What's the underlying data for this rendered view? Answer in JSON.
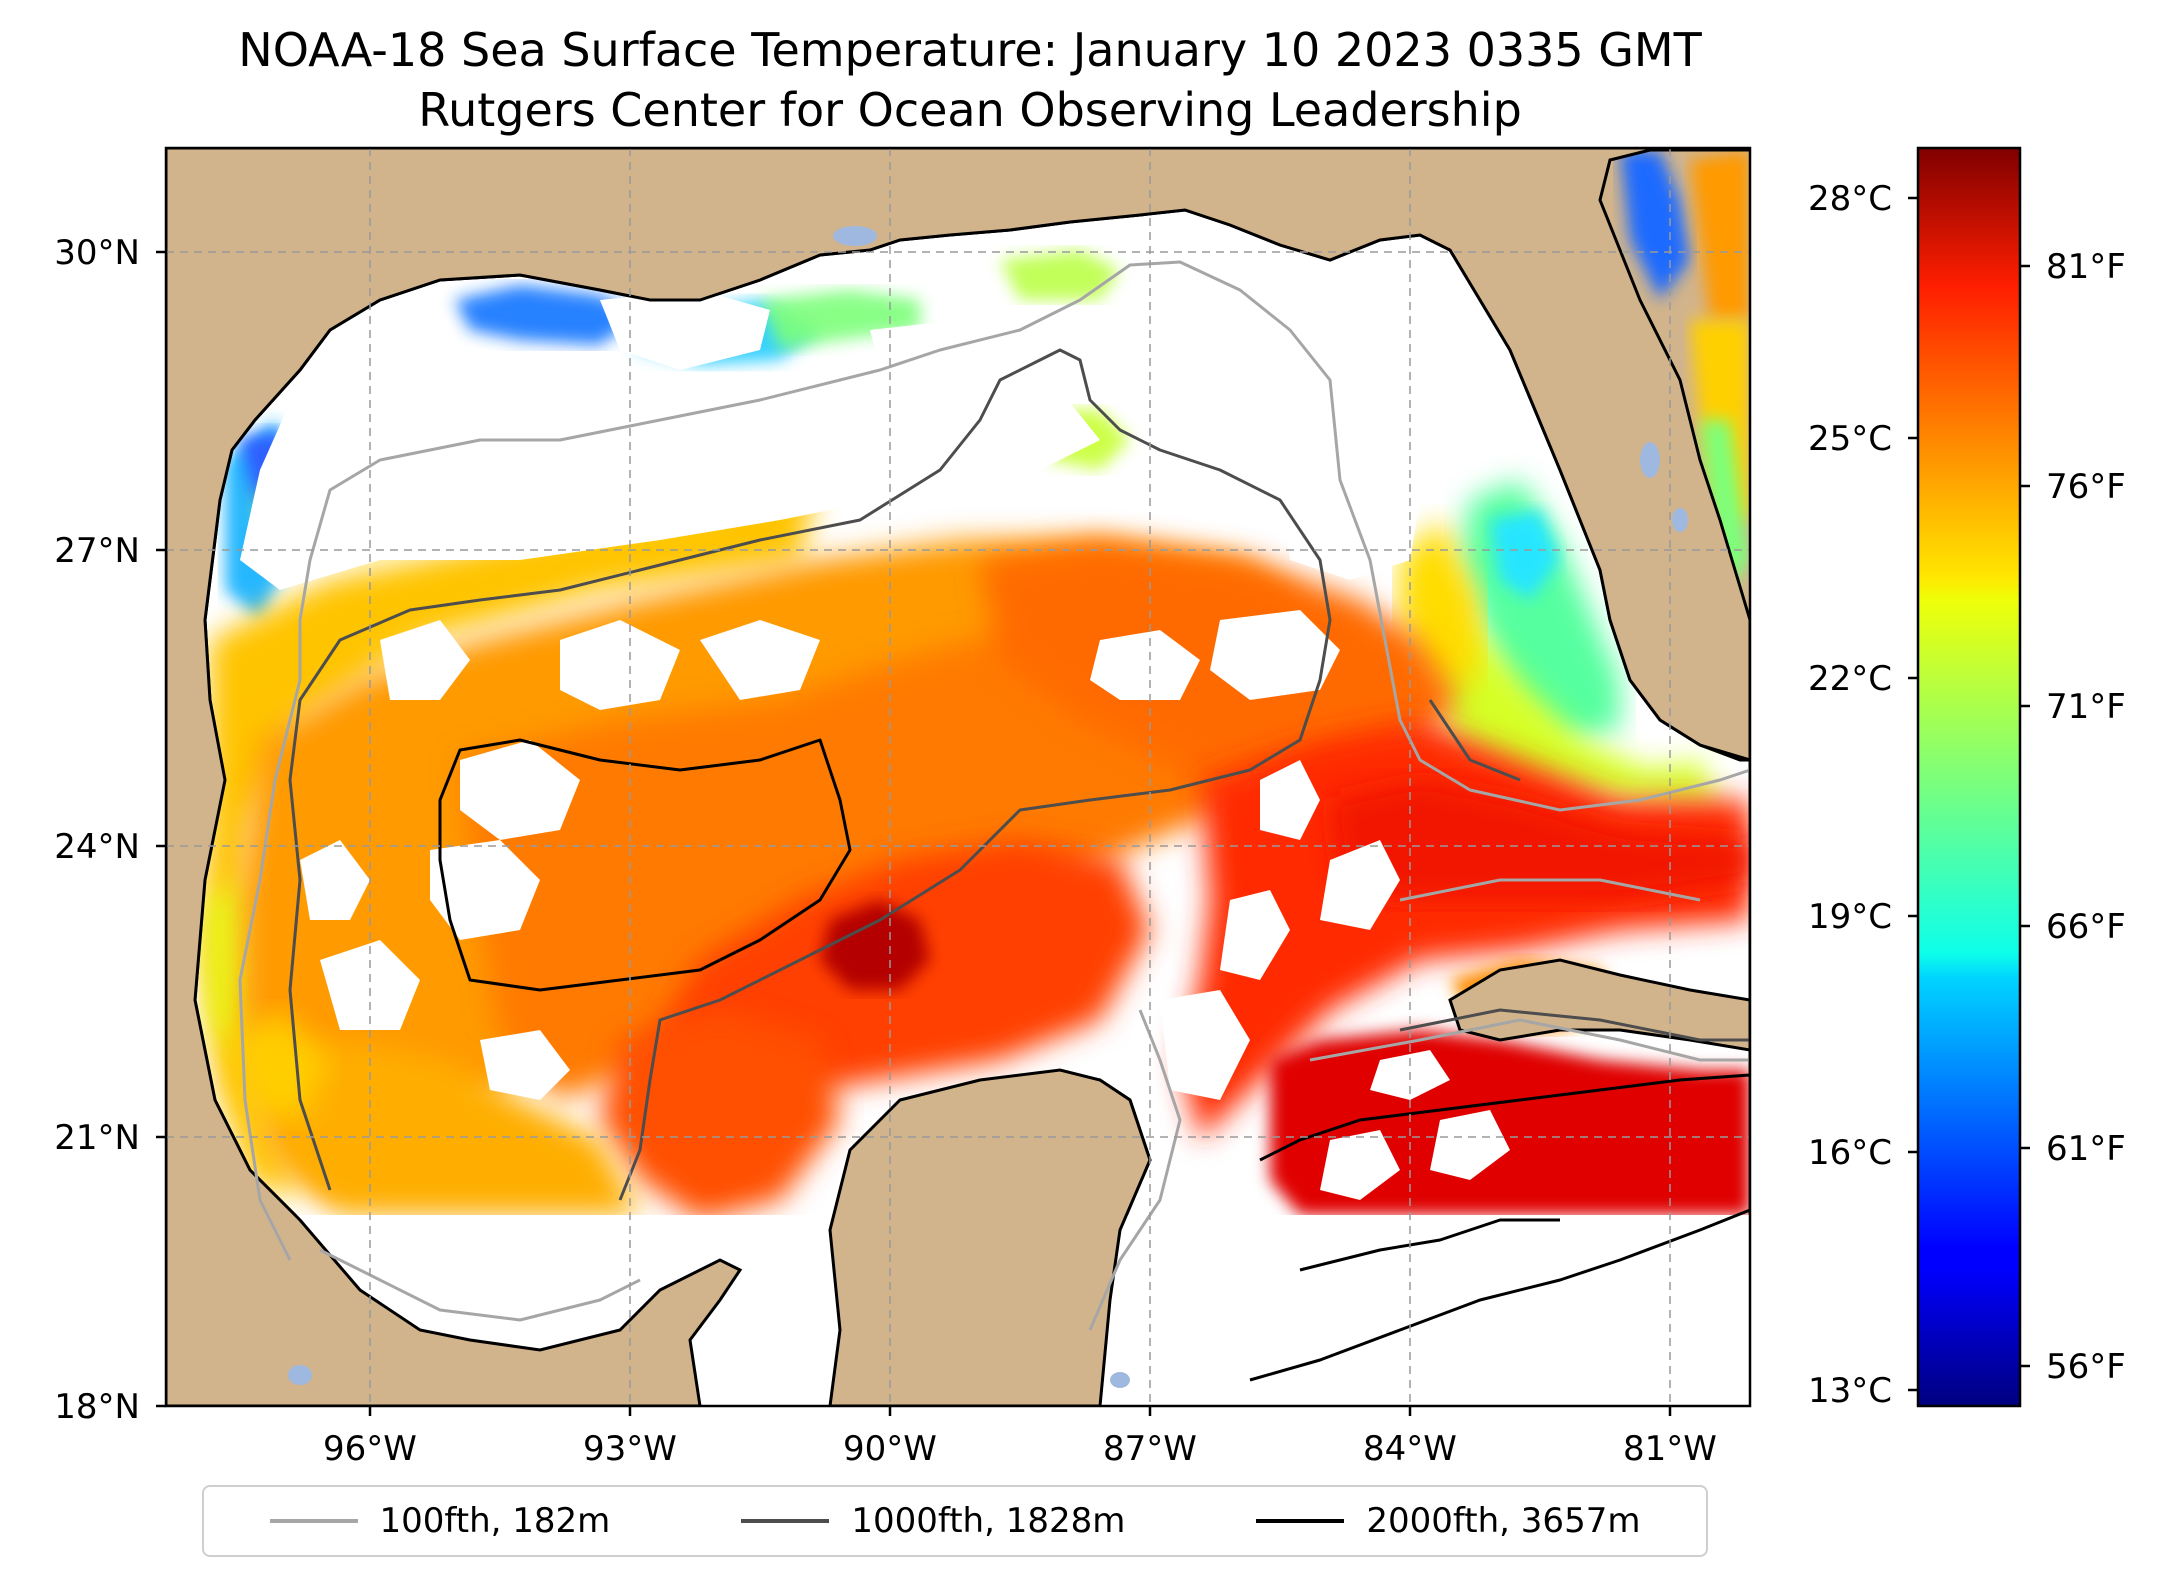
{
  "title_line1": "NOAA-18 Sea Surface Temperature: January 10 2023 0335 GMT",
  "title_line2": "Rutgers Center for Ocean Observing Leadership",
  "map": {
    "extent": {
      "lon_min": -98.0,
      "lon_max": -80.2,
      "lat_min": 18.0,
      "lat_max": 31.0
    },
    "lat_ticks": [
      {
        "value": 30,
        "label": "30°N"
      },
      {
        "value": 27,
        "label": "27°N"
      },
      {
        "value": 24,
        "label": "24°N"
      },
      {
        "value": 21,
        "label": "21°N"
      },
      {
        "value": 18,
        "label": "18°N"
      }
    ],
    "lon_ticks": [
      {
        "value": -96,
        "label": "96°W"
      },
      {
        "value": -93,
        "label": "93°W"
      },
      {
        "value": -90,
        "label": "90°W"
      },
      {
        "value": -87,
        "label": "87°W"
      },
      {
        "value": -84,
        "label": "84°W"
      },
      {
        "value": -81,
        "label": "81°W"
      }
    ],
    "gridlines": true,
    "colors": {
      "land": "#d2b48c",
      "no_data": "#ffffff",
      "lakes": "#9fb8e0",
      "coastline": "#000000"
    }
  },
  "legend": {
    "placement": "bottom",
    "items": [
      {
        "label": "100fth, 182m",
        "color": "#a6a6a6"
      },
      {
        "label": "1000fth, 1828m",
        "color": "#4d4d4d"
      },
      {
        "label": "2000fth, 3657m",
        "color": "#000000"
      }
    ]
  },
  "colorbar": {
    "colormap": "jet",
    "range_c": [
      12.8,
      29.3
    ],
    "celsius_ticks": [
      {
        "value": 28,
        "label": "28°C"
      },
      {
        "value": 25,
        "label": "25°C"
      },
      {
        "value": 22,
        "label": "22°C"
      },
      {
        "value": 19,
        "label": "19°C"
      },
      {
        "value": 16,
        "label": "16°C"
      },
      {
        "value": 13,
        "label": "13°C"
      }
    ],
    "fahrenheit_ticks": [
      {
        "value": 81,
        "label": "81°F"
      },
      {
        "value": 76,
        "label": "76°F"
      },
      {
        "value": 71,
        "label": "71°F"
      },
      {
        "value": 66,
        "label": "66°F"
      },
      {
        "value": 61,
        "label": "61°F"
      },
      {
        "value": 56,
        "label": "56°F"
      }
    ]
  }
}
